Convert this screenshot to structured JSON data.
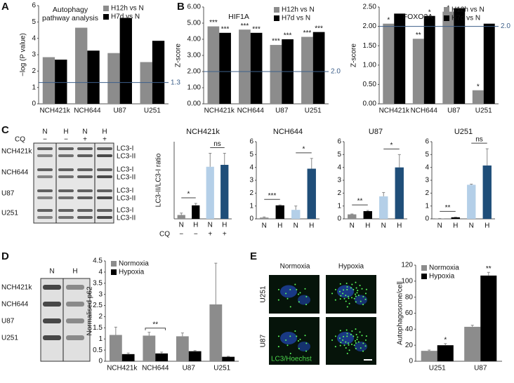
{
  "figure": {
    "letters": [
      "A",
      "B",
      "C",
      "D",
      "E"
    ],
    "c_blot": {
      "lanes": [
        "N",
        "H",
        "N",
        "H"
      ],
      "cq_label": "CQ",
      "cq": [
        "−",
        "−",
        "+",
        "+"
      ],
      "rows": [
        "NCH421k",
        "NCH644",
        "U87",
        "U251"
      ],
      "bands": [
        "LC3-I",
        "LC3-II"
      ]
    },
    "d_blot": {
      "lanes": [
        "N",
        "H"
      ],
      "rows": [
        "NCH421k",
        "NCH644",
        "U87",
        "U251"
      ]
    },
    "e_images": {
      "columns": [
        "Normoxia",
        "Hypoxia"
      ],
      "rows": [
        "U251",
        "U87"
      ],
      "stain": "LC3/Hoechst"
    }
  },
  "chart_data": [
    {
      "type": "bar",
      "title": "Autophagy pathway analysis",
      "ylabel": "−log (P value)",
      "categories": [
        "NCH421k",
        "NCH644",
        "U87",
        "U251"
      ],
      "series": [
        {
          "name": "H12h vs N",
          "color": "#8c8c8c",
          "values": [
            2.85,
            4.65,
            3.1,
            2.55
          ]
        },
        {
          "name": "H7d vs N",
          "color": "#000000",
          "values": [
            2.7,
            3.25,
            5.25,
            3.85
          ]
        }
      ],
      "ylim": [
        0,
        6
      ],
      "yticks": [
        0,
        1,
        2,
        3,
        4,
        5,
        6
      ],
      "threshold": {
        "value": 1.3,
        "label": "1.3"
      },
      "legend": "upper right"
    },
    {
      "type": "bar",
      "title": "HIF1A",
      "ylabel": "Z-score",
      "categories": [
        "NCH421k",
        "NCH644",
        "U87",
        "U251"
      ],
      "series": [
        {
          "name": "H12h vs N",
          "color": "#8c8c8c",
          "values": [
            4.8,
            4.6,
            3.65,
            4.15
          ],
          "annotations": [
            "***",
            "***",
            "***",
            "***"
          ]
        },
        {
          "name": "H7d vs N",
          "color": "#000000",
          "values": [
            4.4,
            4.4,
            4.0,
            4.45
          ],
          "annotations": [
            "***",
            "***",
            "***",
            "***"
          ]
        }
      ],
      "ylim": [
        0,
        6
      ],
      "yticks": [
        {
          "value": 0,
          "label": "0.00"
        },
        {
          "value": 1,
          "label": "1.00"
        },
        {
          "value": 2,
          "label": "2.00"
        },
        {
          "value": 3,
          "label": "3.00"
        },
        {
          "value": 4,
          "label": "4.00"
        },
        {
          "value": 5,
          "label": "5.00"
        },
        {
          "value": 6,
          "label": "6.00"
        }
      ],
      "threshold": {
        "value": 2,
        "label": "2.0"
      },
      "legend": "upper right"
    },
    {
      "type": "bar",
      "title": "FOXO3A",
      "ylabel": "Z-score",
      "categories": [
        "NCH421k",
        "NCH644",
        "U87",
        "U251"
      ],
      "series": [
        {
          "name": "H12h vs N",
          "color": "#8c8c8c",
          "values": [
            2.07,
            1.68,
            2.38,
            0.35
          ],
          "annotations": [
            "*",
            "**",
            "*",
            "*"
          ]
        },
        {
          "name": "H7d vs N",
          "color": "#000000",
          "values": [
            2.33,
            2.27,
            2.47,
            2.07
          ],
          "annotations": [
            null,
            "*",
            null,
            null
          ]
        }
      ],
      "ylim": [
        0,
        2.5
      ],
      "yticks": [
        {
          "value": 0,
          "label": "0.00"
        },
        {
          "value": 0.5,
          "label": "0.50"
        },
        {
          "value": 1,
          "label": "1.00"
        },
        {
          "value": 1.5,
          "label": "1.50"
        },
        {
          "value": 2,
          "label": "2.00"
        },
        {
          "value": 2.5,
          "label": "2.50"
        }
      ],
      "threshold": {
        "value": 2,
        "label": "2.0"
      },
      "legend": "upper right"
    },
    {
      "type": "bar",
      "title": "NCH421k",
      "ylabel": "LC3-II/LC3-I ratio",
      "categories": [
        "N",
        "H",
        "N",
        "H"
      ],
      "cq_label": "CQ",
      "cq": [
        "−",
        "−",
        "+",
        "+"
      ],
      "values": [
        0.1,
        0.35,
        1.35,
        1.4
      ],
      "errors": [
        0.05,
        0.05,
        0.35,
        0.3
      ],
      "colors": [
        "#8c8c8c",
        "#000000",
        "#b4cfe8",
        "#1f4e79"
      ],
      "significance": [
        "*",
        "ns"
      ],
      "ylim": [
        0,
        2
      ]
    },
    {
      "type": "bar",
      "title": "NCH644",
      "categories": [
        "N",
        "H",
        "N",
        "H"
      ],
      "values": [
        0.1,
        1.05,
        0.7,
        3.9
      ],
      "errors": [
        0.05,
        0.03,
        0.3,
        0.8
      ],
      "colors": [
        "#8c8c8c",
        "#000000",
        "#b4cfe8",
        "#1f4e79"
      ],
      "significance": [
        "***",
        "*"
      ],
      "ylim": [
        0,
        6
      ],
      "yticks": [
        0,
        1,
        2,
        3,
        4,
        5,
        6
      ]
    },
    {
      "type": "bar",
      "title": "U87",
      "categories": [
        "N",
        "H",
        "N",
        "H"
      ],
      "values": [
        0.35,
        0.6,
        1.75,
        4.0
      ],
      "errors": [
        0.03,
        0.05,
        0.3,
        1.0
      ],
      "colors": [
        "#8c8c8c",
        "#000000",
        "#b4cfe8",
        "#1f4e79"
      ],
      "significance": [
        "**",
        "*"
      ],
      "ylim": [
        0,
        6
      ],
      "yticks": [
        0,
        1,
        2,
        3,
        4,
        5,
        6
      ]
    },
    {
      "type": "bar",
      "title": "U251",
      "categories": [
        "N",
        "H",
        "N",
        "H"
      ],
      "values": [
        0.02,
        0.12,
        2.65,
        4.15
      ],
      "errors": [
        0.01,
        0.02,
        0.05,
        1.3
      ],
      "colors": [
        "#8c8c8c",
        "#000000",
        "#b4cfe8",
        "#1f4e79"
      ],
      "significance": [
        "**",
        "ns"
      ],
      "ylim": [
        0,
        6
      ],
      "yticks": [
        0,
        1,
        2,
        3,
        4,
        5,
        6
      ]
    },
    {
      "type": "bar",
      "ylabel": "Normalised p62",
      "categories": [
        "NCH421k",
        "NCH644",
        "U87",
        "U251"
      ],
      "series": [
        {
          "name": "Normoxia",
          "color": "#8c8c8c",
          "values": [
            1.18,
            1.15,
            1.12,
            2.55
          ],
          "errors": [
            0.35,
            0.15,
            0.15,
            1.85
          ]
        },
        {
          "name": "Hypoxia",
          "color": "#000000",
          "values": [
            0.32,
            0.35,
            0.45,
            0.2
          ],
          "errors": [
            0.05,
            0.06,
            0.03,
            0.02
          ]
        }
      ],
      "annotations": [
        null,
        "**",
        null,
        null
      ],
      "ylim": [
        0,
        4.5
      ],
      "yticks": [
        0,
        0.5,
        1,
        1.5,
        2,
        2.5,
        3,
        3.5,
        4,
        4.5
      ],
      "legend": "upper left"
    },
    {
      "type": "bar",
      "ylabel": "Autophagosome/cell",
      "categories": [
        "U251",
        "U87"
      ],
      "series": [
        {
          "name": "Normoxia",
          "color": "#8c8c8c",
          "values": [
            13,
            43
          ],
          "errors": [
            1,
            2
          ]
        },
        {
          "name": "Hypoxia",
          "color": "#000000",
          "values": [
            20,
            107
          ],
          "errors": [
            2,
            4
          ],
          "annotations": [
            "*",
            "**"
          ]
        }
      ],
      "ylim": [
        0,
        120
      ],
      "yticks": [
        0,
        20,
        40,
        60,
        80,
        100,
        120
      ],
      "legend": "upper left"
    }
  ]
}
